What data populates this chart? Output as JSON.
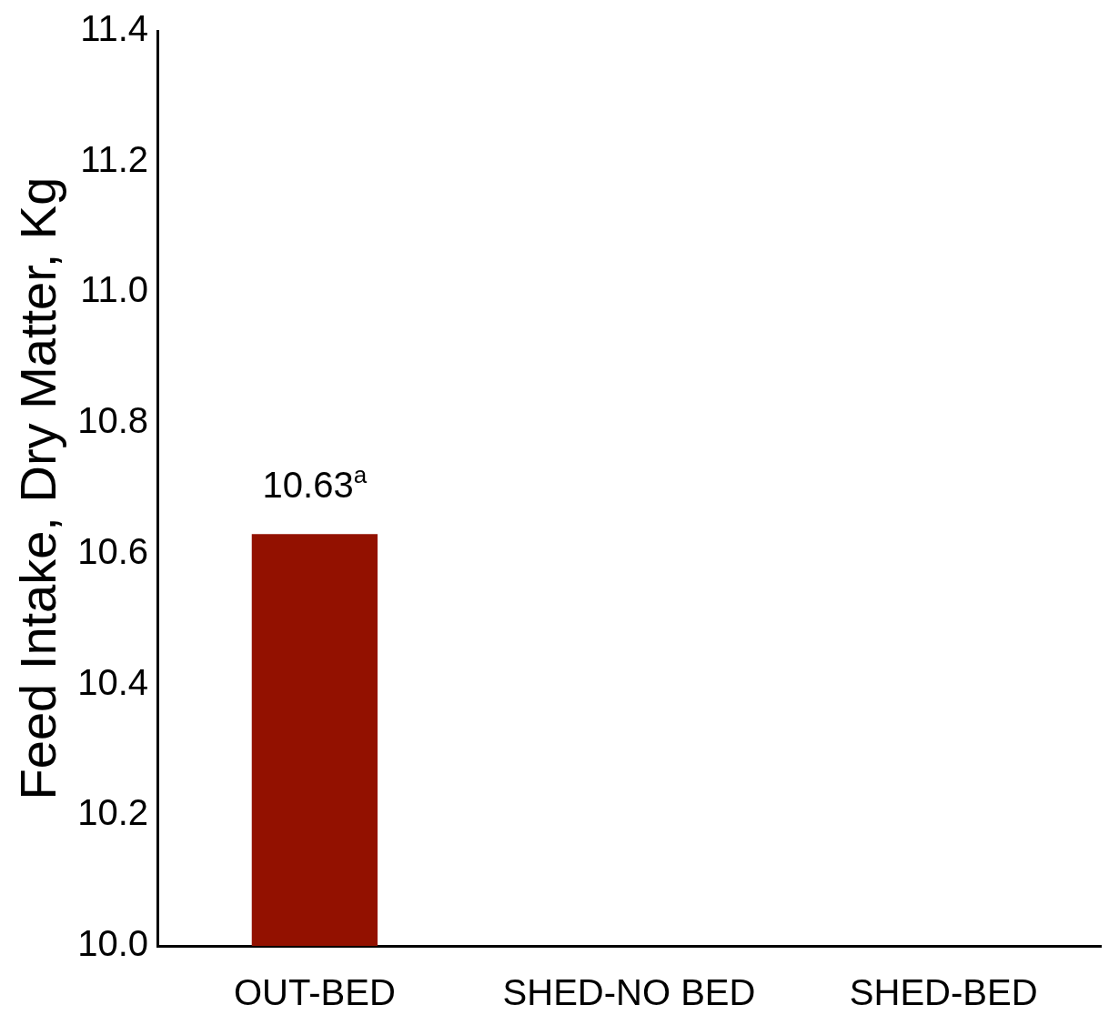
{
  "chart_data": {
    "type": "bar",
    "ylabel": "Feed Intake, Dry Matter, Kg",
    "categories": [
      "OUT-BED",
      "SHED-NO BED",
      "SHED-BED"
    ],
    "values": [
      10.63,
      null,
      null
    ],
    "color": "#931100",
    "value_labels": [
      "10.63$^{a}$",
      null,
      null
    ],
    "ylim": [
      10.0,
      11.4
    ],
    "yticks": [
      {
        "value": 10.0,
        "label": "10.0"
      },
      {
        "value": 10.2,
        "label": "10.2"
      },
      {
        "value": 10.4,
        "label": "10.4"
      },
      {
        "value": 10.6,
        "label": "10.6"
      },
      {
        "value": 10.8,
        "label": "10.8"
      },
      {
        "value": 11.0,
        "label": "11.0"
      },
      {
        "value": 11.2,
        "label": "11.2"
      },
      {
        "value": 11.4,
        "label": "11.4"
      }
    ],
    "grid": false,
    "legend": false
  }
}
